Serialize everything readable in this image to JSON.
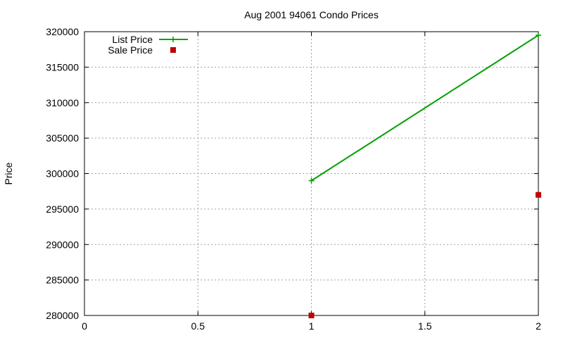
{
  "chart_data": {
    "type": "line",
    "title": "Aug 2001 94061 Condo Prices",
    "xlabel": "",
    "ylabel": "Price",
    "xlim": [
      0,
      2
    ],
    "ylim": [
      280000,
      320000
    ],
    "x_ticks": [
      0,
      0.5,
      1,
      1.5,
      2
    ],
    "x_tick_labels": [
      "0",
      "0.5",
      "1",
      "1.5",
      "2"
    ],
    "y_ticks": [
      280000,
      285000,
      290000,
      295000,
      300000,
      305000,
      310000,
      315000,
      320000
    ],
    "y_tick_labels": [
      "280000",
      "285000",
      "290000",
      "295000",
      "300000",
      "305000",
      "310000",
      "315000",
      "320000"
    ],
    "grid": true,
    "legend_position": "top-left",
    "series": [
      {
        "name": "List Price",
        "style": "linespoints",
        "marker": "plus",
        "color": "#00a000",
        "x": [
          1,
          2
        ],
        "values": [
          299000,
          319500
        ]
      },
      {
        "name": "Sale Price",
        "style": "points",
        "marker": "square",
        "color": "#c00000",
        "x": [
          1,
          2
        ],
        "values": [
          280000,
          297000
        ]
      }
    ]
  }
}
